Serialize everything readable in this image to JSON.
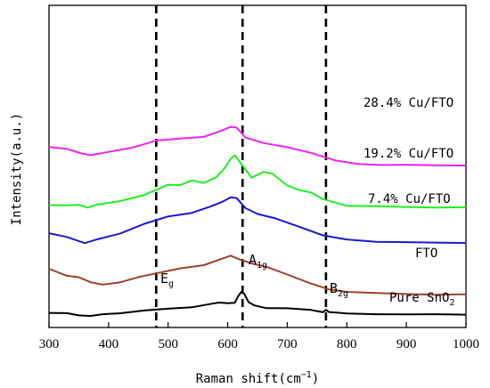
{
  "chart_data": {
    "type": "line",
    "xlabel": "Raman shift(cm",
    "xlabel_sup": "−1",
    "xlabel_close": ")",
    "ylabel": "Intensity(a.u.)",
    "xlim": [
      300,
      1000
    ],
    "xticks": [
      300,
      400,
      500,
      600,
      700,
      800,
      900,
      1000
    ],
    "y_ticks_shown": false,
    "grid": false,
    "legend": "inline labels at right",
    "reference_lines": [
      {
        "x": 480,
        "label": "E",
        "sub": "g",
        "style": "dashed"
      },
      {
        "x": 625,
        "label": "A",
        "sub": "1g",
        "style": "dashed"
      },
      {
        "x": 765,
        "label": "B",
        "sub": "2g",
        "style": "dashed"
      }
    ],
    "series": [
      {
        "name": "Pure SnO",
        "sub": "2",
        "color": "#000000",
        "points": [
          [
            300,
            0.6
          ],
          [
            330,
            0.2
          ],
          [
            350,
            -0.5
          ],
          [
            360,
            -2.0
          ],
          [
            370,
            -2.3
          ],
          [
            390,
            0
          ],
          [
            420,
            1.5
          ],
          [
            460,
            3.5
          ],
          [
            500,
            4.8
          ],
          [
            540,
            6.5
          ],
          [
            570,
            9.5
          ],
          [
            585,
            11
          ],
          [
            600,
            10.5
          ],
          [
            612,
            12
          ],
          [
            618,
            18
          ],
          [
            623,
            23
          ],
          [
            628,
            21
          ],
          [
            635,
            13
          ],
          [
            645,
            9
          ],
          [
            665,
            6.5
          ],
          [
            700,
            5.5
          ],
          [
            740,
            3.5
          ],
          [
            760,
            2.5
          ],
          [
            765,
            4.5
          ],
          [
            770,
            1.5
          ],
          [
            800,
            0.5
          ],
          [
            850,
            0
          ],
          [
            900,
            -0.2
          ],
          [
            950,
            -0.3
          ],
          [
            1000,
            -0.2
          ]
        ]
      },
      {
        "name": "FTO",
        "color": "#a0402a",
        "points": [
          [
            300,
            47
          ],
          [
            330,
            40
          ],
          [
            350,
            37
          ],
          [
            370,
            33
          ],
          [
            390,
            30
          ],
          [
            420,
            32
          ],
          [
            450,
            37
          ],
          [
            480,
            41
          ],
          [
            520,
            46
          ],
          [
            560,
            50
          ],
          [
            590,
            56
          ],
          [
            605,
            59
          ],
          [
            620,
            55
          ],
          [
            645,
            51
          ],
          [
            665,
            48
          ],
          [
            700,
            41
          ],
          [
            740,
            32
          ],
          [
            770,
            26
          ],
          [
            800,
            23
          ],
          [
            850,
            21.5
          ],
          [
            900,
            20.5
          ],
          [
            950,
            20
          ],
          [
            1000,
            20
          ]
        ]
      },
      {
        "name": "7.4% Cu/FTO",
        "color": "#1a1acc",
        "points": [
          [
            300,
            82
          ],
          [
            330,
            78
          ],
          [
            360,
            72
          ],
          [
            380,
            77
          ],
          [
            420,
            83
          ],
          [
            460,
            92
          ],
          [
            500,
            99
          ],
          [
            540,
            103
          ],
          [
            570,
            109
          ],
          [
            590,
            115
          ],
          [
            605,
            120
          ],
          [
            615,
            118
          ],
          [
            630,
            108
          ],
          [
            650,
            103
          ],
          [
            680,
            98
          ],
          [
            720,
            90
          ],
          [
            760,
            81
          ],
          [
            800,
            76
          ],
          [
            850,
            74
          ],
          [
            900,
            73.5
          ],
          [
            950,
            73
          ],
          [
            1000,
            73
          ]
        ]
      },
      {
        "name": "19.2% Cu/FTO",
        "color": "#22ee22",
        "points": [
          [
            300,
            112
          ],
          [
            330,
            112
          ],
          [
            350,
            111
          ],
          [
            365,
            108
          ],
          [
            380,
            111
          ],
          [
            420,
            115
          ],
          [
            460,
            122
          ],
          [
            500,
            133
          ],
          [
            520,
            131
          ],
          [
            540,
            137
          ],
          [
            560,
            134
          ],
          [
            580,
            139
          ],
          [
            595,
            149
          ],
          [
            605,
            158
          ],
          [
            612,
            162
          ],
          [
            620,
            155
          ],
          [
            640,
            140
          ],
          [
            660,
            145
          ],
          [
            675,
            143
          ],
          [
            700,
            132
          ],
          [
            720,
            126
          ],
          [
            740,
            125
          ],
          [
            760,
            117
          ],
          [
            800,
            111
          ],
          [
            850,
            110
          ],
          [
            900,
            109.5
          ],
          [
            950,
            109
          ],
          [
            1000,
            109
          ]
        ]
      },
      {
        "name": "28.4% Cu/FTO",
        "color": "#ee22ee",
        "points": [
          [
            300,
            170
          ],
          [
            330,
            168
          ],
          [
            355,
            164
          ],
          [
            370,
            162
          ],
          [
            400,
            165
          ],
          [
            440,
            170
          ],
          [
            480,
            178
          ],
          [
            520,
            180
          ],
          [
            560,
            181
          ],
          [
            590,
            188
          ],
          [
            605,
            192
          ],
          [
            615,
            190
          ],
          [
            630,
            180
          ],
          [
            660,
            175
          ],
          [
            700,
            170
          ],
          [
            740,
            164
          ],
          [
            780,
            157
          ],
          [
            820,
            154
          ],
          [
            860,
            153
          ],
          [
            900,
            152.5
          ],
          [
            950,
            152
          ],
          [
            1000,
            152
          ]
        ]
      }
    ]
  }
}
